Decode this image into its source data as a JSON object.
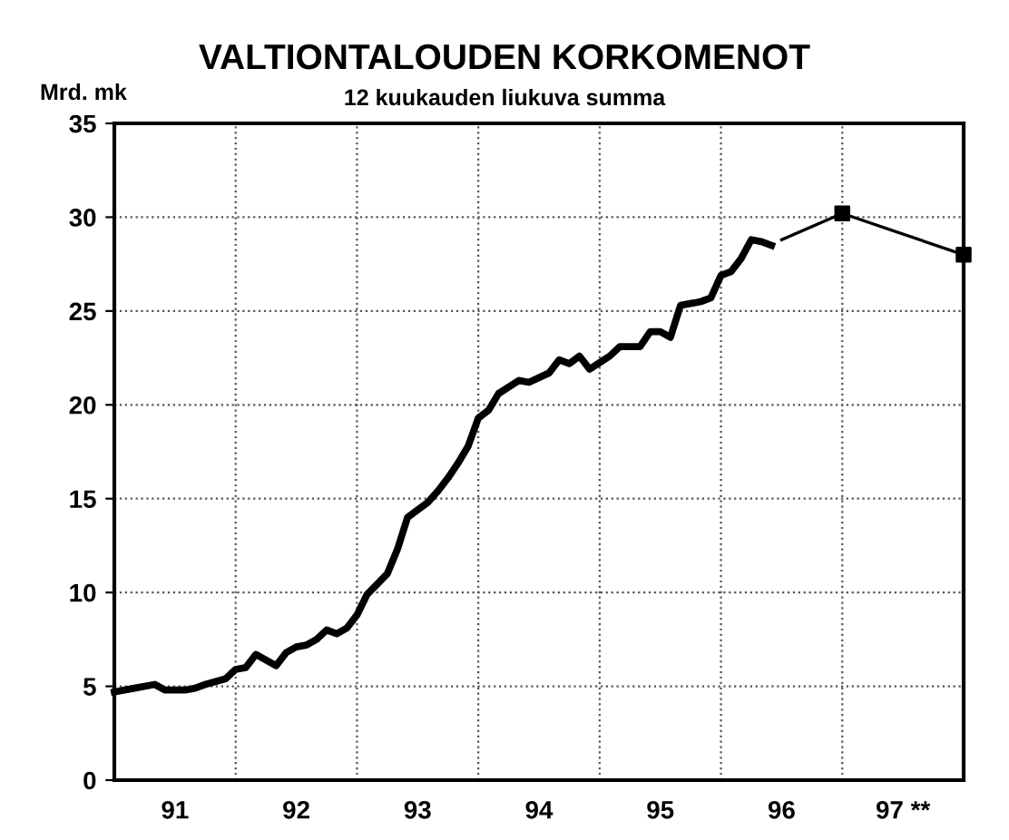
{
  "chart_data": {
    "type": "line",
    "title": "VALTIONTALOUDEN KORKOMENOT",
    "subtitle": "12 kuukauden liukuva summa",
    "ylabel": "Mrd. mk",
    "xlim": [
      "1991-01",
      "1998-01"
    ],
    "ylim": [
      0,
      35
    ],
    "yticks": [
      0,
      5,
      10,
      15,
      20,
      25,
      30,
      35
    ],
    "xticks": [
      {
        "value": "1991-07",
        "label": "91"
      },
      {
        "value": "1992-07",
        "label": "92"
      },
      {
        "value": "1993-07",
        "label": "93"
      },
      {
        "value": "1994-07",
        "label": "94"
      },
      {
        "value": "1995-07",
        "label": "95"
      },
      {
        "value": "1996-07",
        "label": "96"
      },
      {
        "value": "1997-07",
        "label": "97 **"
      },
      {
        "value": "1992-01",
        "label": null
      },
      {
        "value": "1993-01",
        "label": null
      },
      {
        "value": "1994-01",
        "label": null
      },
      {
        "value": "1995-01",
        "label": null
      },
      {
        "value": "1996-01",
        "label": null
      },
      {
        "value": "1997-01",
        "label": null
      }
    ],
    "grid": true,
    "series": [
      {
        "color": "#000000",
        "line_style": "solid",
        "marker": "none",
        "x": [
          "1991-01",
          "1991-03",
          "1991-05",
          "1991-06",
          "1991-08",
          "1991-09",
          "1991-10",
          "1991-12",
          "1992-01",
          "1992-02",
          "1992-03",
          "1992-04",
          "1992-05",
          "1992-06",
          "1992-07",
          "1992-08",
          "1992-09",
          "1992-10",
          "1992-11",
          "1992-12",
          "1993-01",
          "1993-02",
          "1993-04",
          "1993-05",
          "1993-06",
          "1993-08",
          "1993-09",
          "1993-10",
          "1993-11",
          "1993-12",
          "1994-01",
          "1994-02",
          "1994-03",
          "1994-05",
          "1994-06",
          "1994-08",
          "1994-09",
          "1994-10",
          "1994-11",
          "1994-12",
          "1995-02",
          "1995-03",
          "1995-05",
          "1995-06",
          "1995-07",
          "1995-08",
          "1995-09",
          "1995-11",
          "1995-12",
          "1996-01",
          "1996-02",
          "1996-03",
          "1996-04",
          "1996-05",
          "1996-06"
        ],
        "values": [
          4.7,
          4.9,
          5.1,
          4.8,
          4.8,
          4.9,
          5.1,
          5.4,
          5.9,
          6.0,
          6.7,
          6.4,
          6.1,
          6.8,
          7.1,
          7.2,
          7.5,
          8.0,
          7.8,
          8.1,
          8.8,
          9.9,
          11.0,
          12.3,
          14.0,
          14.8,
          15.4,
          16.1,
          16.9,
          17.8,
          19.3,
          19.7,
          20.6,
          21.3,
          21.2,
          21.7,
          22.4,
          22.2,
          22.6,
          21.9,
          22.6,
          23.1,
          23.1,
          23.9,
          23.9,
          23.6,
          25.3,
          25.5,
          25.7,
          26.9,
          27.1,
          27.8,
          28.8,
          28.7,
          28.5
        ]
      },
      {
        "color": "#000000",
        "line_style": "solid",
        "marker": "none",
        "x": [
          "1996-07",
          "1997-01",
          "1998-01"
        ],
        "values": [
          28.8,
          30.2,
          28.0
        ]
      },
      {
        "type": "scatter",
        "color": "#000000",
        "marker": "square",
        "x": [
          "1997-01",
          "1998-01"
        ],
        "values": [
          30.2,
          28.0
        ]
      }
    ]
  }
}
